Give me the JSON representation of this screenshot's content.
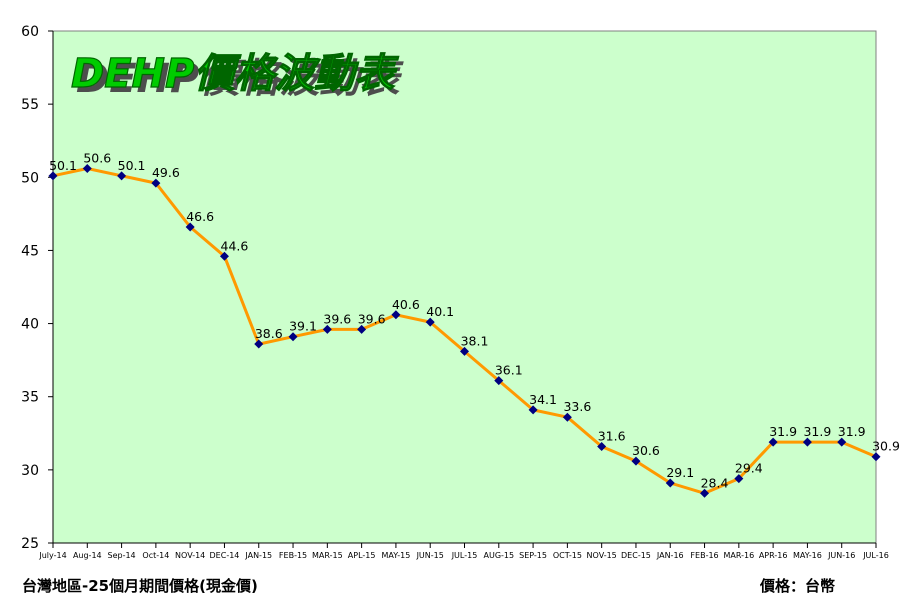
{
  "chart_data": {
    "type": "line",
    "title": "DEHP價格波動表",
    "ylim": [
      25,
      60
    ],
    "yticks": [
      25,
      30,
      35,
      40,
      45,
      50,
      55,
      60
    ],
    "grid": false,
    "categories": [
      "July-14",
      "Aug-14",
      "Sep-14",
      "Oct-14",
      "NOV-14",
      "DEC-14",
      "JAN-15",
      "FEB-15",
      "MAR-15",
      "APL-15",
      "MAY-15",
      "JUN-15",
      "JUL-15",
      "AUG-15",
      "SEP-15",
      "OCT-15",
      "NOV-15",
      "DEC-15",
      "JAN-16",
      "FEB-16",
      "MAR-16",
      "APR-16",
      "MAY-16",
      "JUN-16",
      "JUL-16"
    ],
    "series": [
      {
        "values": [
          50.1,
          50.6,
          50.1,
          49.6,
          46.6,
          44.6,
          38.6,
          39.1,
          39.6,
          39.6,
          40.6,
          40.1,
          38.1,
          36.1,
          34.1,
          33.6,
          31.6,
          30.6,
          29.1,
          28.4,
          29.4,
          31.9,
          31.9,
          31.9,
          30.9
        ],
        "labels": [
          "50.1",
          "50.6",
          "50.1",
          "49.6",
          "46.6",
          "44.6",
          "38.6",
          "39.1",
          "39.6",
          "39.6",
          "40.6",
          "40.1",
          "38.1",
          "36.1",
          "34.1",
          "33.6",
          "31.6",
          "30.6",
          "29.1",
          "28.4",
          "29.4",
          "31.9",
          "31.9",
          "31.9",
          "30.9"
        ]
      }
    ],
    "colors": {
      "plot_bg": "#ccffcc",
      "line": "#ff9900",
      "marker": "#000080",
      "title_text": "#00cc00"
    }
  },
  "footer": {
    "left": "台灣地區-25個月期間價格(現金價)",
    "right": "價格：台幣"
  }
}
